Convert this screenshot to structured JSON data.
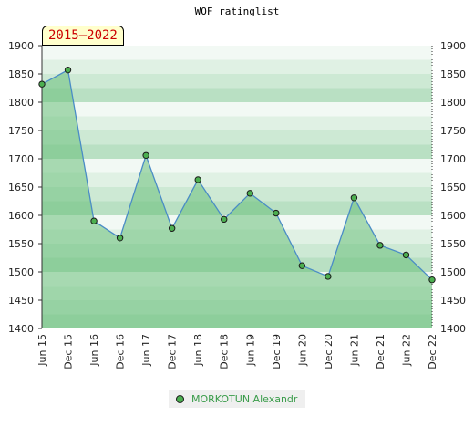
{
  "header": {
    "title": "WOF ratinglist",
    "period": "2015–2022"
  },
  "legend": {
    "label": "MORKOTUN Alexandr"
  },
  "colors": {
    "line": "#4a8cc6",
    "marker": "#4caf50",
    "area": "#6ac07a"
  },
  "chart_data": {
    "type": "area",
    "title": "WOF ratinglist",
    "x": [
      "Jun 15",
      "Dec 15",
      "Jun 16",
      "Dec 16",
      "Jun 17",
      "Dec 17",
      "Jun 18",
      "Dec 18",
      "Jun 19",
      "Dec 19",
      "Jun 20",
      "Dec 20",
      "Jun 21",
      "Dec 21",
      "Jun 22",
      "Dec 22"
    ],
    "series": [
      {
        "name": "MORKOTUN Alexandr",
        "values": [
          1832,
          1857,
          1590,
          1560,
          1706,
          1577,
          1663,
          1593,
          1639,
          1604,
          1511,
          1492,
          1631,
          1547,
          1530,
          1486
        ]
      }
    ],
    "ylim": [
      1400,
      1900
    ],
    "yticks": [
      1400,
      1450,
      1500,
      1550,
      1600,
      1650,
      1700,
      1750,
      1800,
      1850,
      1900
    ],
    "grid": true,
    "legend_position": "bottom"
  }
}
